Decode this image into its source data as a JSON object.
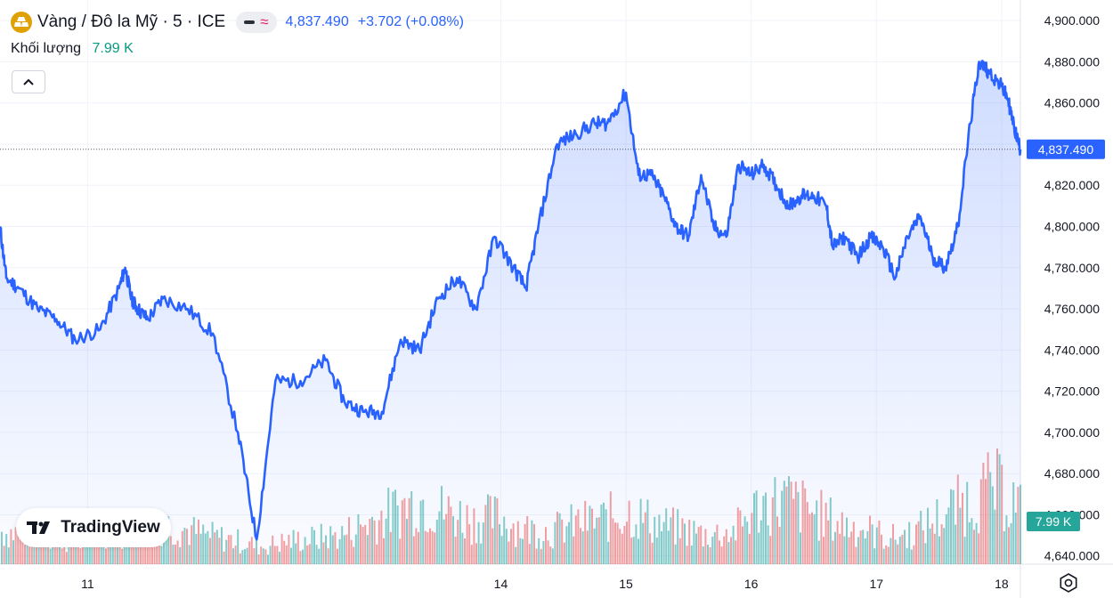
{
  "header": {
    "symbol": "Vàng / Đô la Mỹ · 5 · ICE",
    "price": "4,837.490",
    "change": "+3.702 (+0.08%)",
    "volume_label": "Khối lượng",
    "volume_value": "7.99 K"
  },
  "branding": {
    "name": "TradingView"
  },
  "icons": {
    "logo": "gold-bars-icon",
    "collapse": "chevron-up-icon",
    "settings": "gear-icon"
  },
  "colors": {
    "line": "#2962ff",
    "up_volume": "#26a69a",
    "down_volume": "#ef5350",
    "price_label": "#2962ff",
    "volume_label": "#26a69a"
  },
  "chart_data": {
    "type": "area",
    "y_axis": {
      "ticks": [
        "4,900.000",
        "4,880.000",
        "4,860.000",
        "4,840.000",
        "4,820.000",
        "4,800.000",
        "4,780.000",
        "4,760.000",
        "4,740.000",
        "4,720.000",
        "4,700.000",
        "4,680.000",
        "4,660.000",
        "4,640.000"
      ],
      "range": [
        4636,
        4910
      ]
    },
    "x_axis": {
      "labels": [
        "11",
        "14",
        "15",
        "16",
        "17",
        "18"
      ],
      "label_positions": [
        0.7,
        4,
        5,
        6,
        7,
        8
      ]
    },
    "current_price": 4837.49,
    "current_price_label": "4,837.490",
    "current_volume_label": "7.99 K",
    "series": {
      "x": [
        0,
        0.05,
        0.15,
        0.3,
        0.45,
        0.6,
        0.8,
        0.95,
        1.0,
        1.05,
        1.1,
        1.18,
        1.3,
        1.5,
        1.7,
        1.9,
        2.05,
        2.2,
        2.4,
        2.6,
        2.75,
        2.9,
        3.05,
        3.2,
        3.35,
        3.5,
        3.65,
        3.8,
        3.95,
        4.1,
        4.2,
        4.3,
        4.45,
        4.6,
        4.75,
        4.85,
        5.0,
        5.1,
        5.2,
        5.3,
        5.4,
        5.5,
        5.6,
        5.7,
        5.8,
        5.9,
        6.0,
        6.1,
        6.2,
        6.3,
        6.4,
        6.5,
        6.6,
        6.65,
        6.75,
        6.85,
        6.95,
        7.05,
        7.15,
        7.25,
        7.35,
        7.45,
        7.55,
        7.65,
        7.75,
        7.82,
        7.9,
        8.0,
        8.05,
        8.1,
        8.15
      ],
      "y": [
        4800,
        4775,
        4770,
        4760,
        4755,
        4745,
        4750,
        4770,
        4780,
        4765,
        4760,
        4755,
        4765,
        4760,
        4748,
        4700,
        4648,
        4725,
        4725,
        4735,
        4715,
        4710,
        4710,
        4745,
        4740,
        4765,
        4775,
        4760,
        4795,
        4780,
        4770,
        4800,
        4840,
        4845,
        4850,
        4850,
        4865,
        4825,
        4825,
        4815,
        4800,
        4795,
        4825,
        4800,
        4795,
        4830,
        4825,
        4830,
        4820,
        4810,
        4815,
        4815,
        4810,
        4790,
        4795,
        4785,
        4795,
        4790,
        4775,
        4795,
        4805,
        4785,
        4780,
        4800,
        4850,
        4880,
        4875,
        4868,
        4862,
        4848,
        4837.49
      ]
    },
    "volume": {
      "levels": [
        0.28,
        0.26,
        0.25,
        0.18,
        0.3,
        0.27,
        0.35,
        0.3,
        0.24,
        0.2,
        0.15,
        0.2,
        0.22,
        0.25,
        0.35,
        0.45,
        0.55,
        0.45,
        0.38,
        0.4,
        0.3,
        0.28,
        0.35,
        0.38,
        0.45,
        0.35,
        0.3,
        0.25,
        0.28,
        0.5,
        0.55,
        0.45,
        0.35,
        0.3,
        0.22,
        0.28,
        0.42,
        0.55,
        0.65,
        0.5
      ],
      "span": [
        0,
        8.15
      ]
    }
  }
}
